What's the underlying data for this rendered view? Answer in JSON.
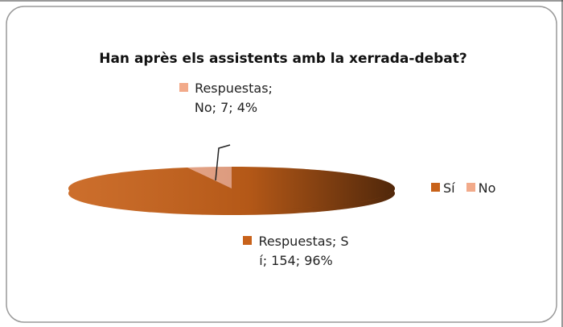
{
  "chart_data": {
    "type": "pie",
    "title": "Han après els assistents amb la xerrada-debat?",
    "series_name": "Respuestas",
    "categories": [
      "Sí",
      "No"
    ],
    "values": [
      154,
      7
    ],
    "value_labels": [
      "Respuestas; Sí; 154; 96%",
      "Respuestas; No; 7; 4%"
    ],
    "colors": [
      "#c8621a",
      "#f2aa8a"
    ],
    "legend": "right"
  }
}
